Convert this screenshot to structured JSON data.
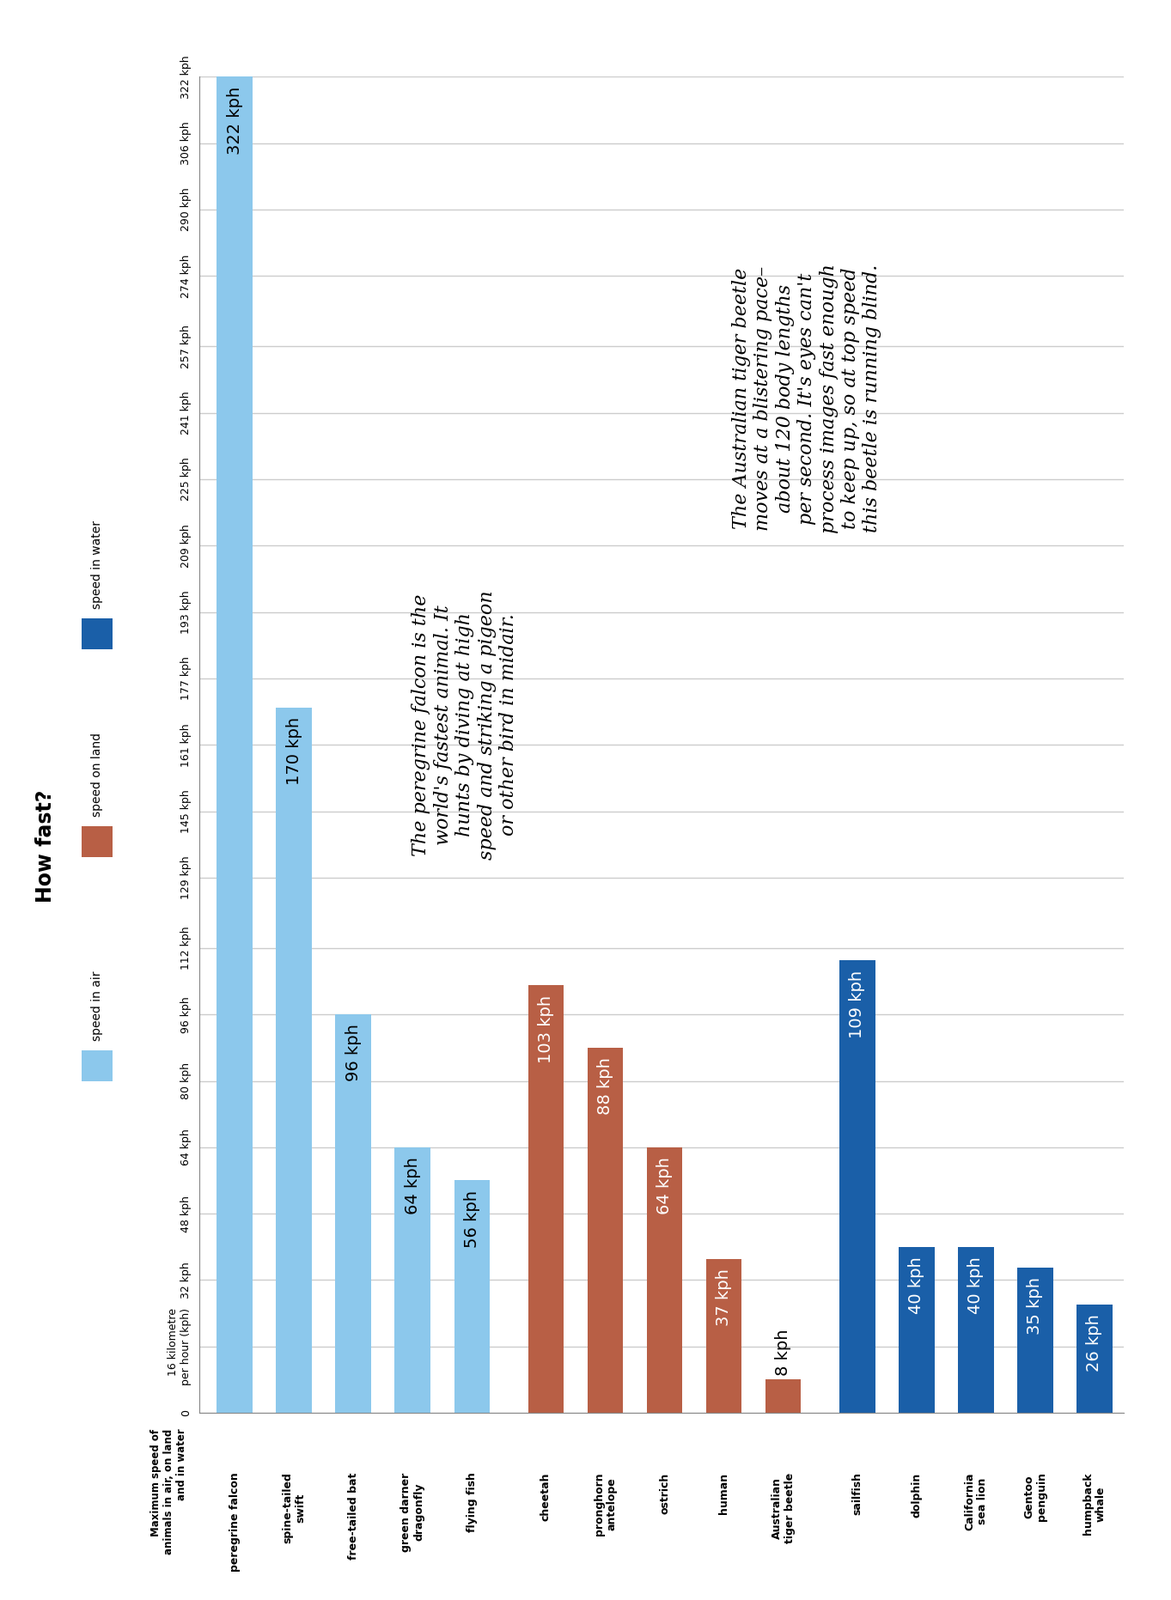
{
  "chart_data": {
    "type": "bar",
    "title": "How fast?",
    "x_label": "Maximum speed of\nanimals in air, on land\nand in water",
    "categories": [
      "peregrine falcon",
      "spine-tailed\nswift",
      "free-tailed bat",
      "green darner\ndragonfly",
      "flying fish",
      "cheetah",
      "pronghorn\nantelope",
      "ostrich",
      "human",
      "Australian\ntiger beetle",
      "sailfish",
      "dolphin",
      "California\nsea lion",
      "Gentoo\npenguin",
      "humpback\nwhale"
    ],
    "series": [
      {
        "name": "speed in air",
        "color": "#8cc8ec",
        "values": [
          322,
          170,
          96,
          64,
          56,
          null,
          null,
          null,
          null,
          null,
          null,
          null,
          null,
          null,
          null
        ],
        "value_labels": [
          "322 kph",
          "170 kph",
          "96 kph",
          "64 kph",
          "56 kph",
          null,
          null,
          null,
          null,
          null,
          null,
          null,
          null,
          null,
          null
        ]
      },
      {
        "name": "speed on land",
        "color": "#b85f45",
        "values": [
          null,
          null,
          null,
          null,
          null,
          103,
          88,
          64,
          37,
          8,
          null,
          null,
          null,
          null,
          null
        ],
        "value_labels": [
          null,
          null,
          null,
          null,
          null,
          "103 kph",
          "88 kph",
          "64 kph",
          "37 kph",
          "8 kph",
          null,
          null,
          null,
          null,
          null
        ]
      },
      {
        "name": "speed in water",
        "color": "#1a5fa8",
        "values": [
          null,
          null,
          null,
          null,
          null,
          null,
          null,
          null,
          null,
          null,
          109,
          40,
          40,
          35,
          26
        ],
        "value_labels": [
          null,
          null,
          null,
          null,
          null,
          null,
          null,
          null,
          null,
          null,
          "109 kph",
          "40 kph",
          "40 kph",
          "35 kph",
          "26 kph"
        ]
      }
    ],
    "ylim": [
      0,
      322
    ],
    "yticks": [
      0,
      {
        "value": 16,
        "label": "16 kilometre\nper hour (kph)"
      },
      {
        "value": 32,
        "label": "32 kph"
      },
      {
        "value": 48,
        "label": "48 kph"
      },
      {
        "value": 64,
        "label": "64 kph"
      },
      {
        "value": 80,
        "label": "80 kph"
      },
      {
        "value": 96,
        "label": "96 kph"
      },
      {
        "value": 112,
        "label": "112 kph"
      },
      {
        "value": 129,
        "label": "129 kph"
      },
      {
        "value": 145,
        "label": "145 kph"
      },
      {
        "value": 161,
        "label": "161 kph"
      },
      {
        "value": 177,
        "label": "177 kph"
      },
      {
        "value": 193,
        "label": "193 kph"
      },
      {
        "value": 209,
        "label": "209 kph"
      },
      {
        "value": 225,
        "label": "225 kph"
      },
      {
        "value": 241,
        "label": "241 kph"
      },
      {
        "value": 257,
        "label": "257 kph"
      },
      {
        "value": 274,
        "label": "274 kph"
      },
      {
        "value": 290,
        "label": "290 kph"
      },
      {
        "value": 306,
        "label": "306 kph"
      },
      {
        "value": 322,
        "label": "322 kph"
      }
    ],
    "grid": true,
    "data_labels": true,
    "annotations": [
      "The peregrine falcon is the\nworld's fastest animal. It\nhunts by diving at high\nspeed and striking a pigeon\nor other bird in midair.",
      "The Australian tiger beetle\nmoves at a blistering pace–\nabout 120 body lengths\nper second. It's eyes can't\nprocess images fast enough\nto keep up, so at top speed\nthis beetle is running blind."
    ]
  }
}
